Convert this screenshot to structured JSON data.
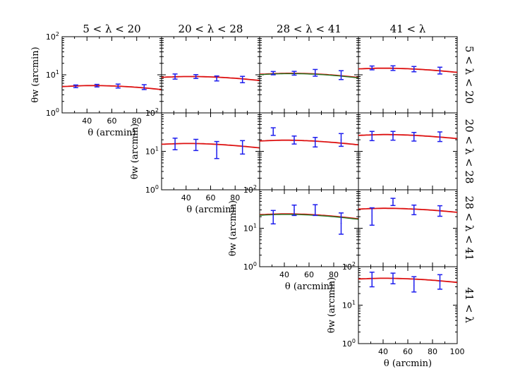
{
  "chart_data": {
    "type": "scatter",
    "title": "",
    "x_scale": "linear",
    "y_scale": "log",
    "xlim": [
      20,
      100
    ],
    "ylim_by_row": [
      [
        1,
        100
      ],
      [
        1,
        100
      ],
      [
        1,
        100
      ],
      [
        1,
        100
      ]
    ],
    "x_ticks": [
      40,
      60,
      80
    ],
    "x_ticks_last_column": [
      40,
      60,
      80,
      100
    ],
    "y_tick_labels": [
      "10^0",
      "10^1",
      "10^2"
    ],
    "xlabel": "θ (arcmin)",
    "ylabel": "θw (arcmin)",
    "column_titles": [
      "5 < λ < 20",
      "20 < λ < 28",
      "28 < λ < 41",
      "41 < λ"
    ],
    "row_titles": [
      "5 < λ < 20",
      "20 < λ < 28",
      "28 < λ < 41",
      "41 < λ"
    ],
    "series_styles": {
      "data": {
        "marker": "errorbar",
        "color": "#1e1eee"
      },
      "model": {
        "line": "solid",
        "color": "#dd1111"
      },
      "model_alt": {
        "line": "solid",
        "color": "#227722"
      }
    },
    "panels": [
      {
        "row": 0,
        "col": 0,
        "points": [
          {
            "x": 31,
            "y": 5.0,
            "lo": 4.6,
            "hi": 5.4
          },
          {
            "x": 48,
            "y": 5.2,
            "lo": 4.8,
            "hi": 5.6
          },
          {
            "x": 65,
            "y": 5.1,
            "lo": 4.5,
            "hi": 5.7
          },
          {
            "x": 86,
            "y": 4.8,
            "lo": 4.1,
            "hi": 5.5
          }
        ],
        "model": [
          {
            "x": 20,
            "y": 4.9
          },
          {
            "x": 40,
            "y": 5.2
          },
          {
            "x": 60,
            "y": 5.1
          },
          {
            "x": 80,
            "y": 4.7
          },
          {
            "x": 100,
            "y": 4.1
          }
        ]
      },
      {
        "row": 0,
        "col": 1,
        "points": [
          {
            "x": 31,
            "y": 9.0,
            "lo": 7.7,
            "hi": 10.5
          },
          {
            "x": 48,
            "y": 9.0,
            "lo": 8.0,
            "hi": 10.1
          },
          {
            "x": 65,
            "y": 8.0,
            "lo": 6.9,
            "hi": 9.3
          },
          {
            "x": 86,
            "y": 7.5,
            "lo": 6.2,
            "hi": 9.1
          }
        ],
        "model": [
          {
            "x": 20,
            "y": 8.6
          },
          {
            "x": 40,
            "y": 9.0
          },
          {
            "x": 60,
            "y": 8.8
          },
          {
            "x": 80,
            "y": 8.1
          },
          {
            "x": 100,
            "y": 7.1
          }
        ]
      },
      {
        "row": 0,
        "col": 2,
        "points": [
          {
            "x": 31,
            "y": 11.0,
            "lo": 10.0,
            "hi": 12.2
          },
          {
            "x": 48,
            "y": 11.0,
            "lo": 9.8,
            "hi": 12.3
          },
          {
            "x": 65,
            "y": 11.3,
            "lo": 9.2,
            "hi": 13.8
          },
          {
            "x": 86,
            "y": 9.5,
            "lo": 7.5,
            "hi": 12.8
          }
        ],
        "model": [
          {
            "x": 20,
            "y": 10.3
          },
          {
            "x": 40,
            "y": 10.9
          },
          {
            "x": 60,
            "y": 10.7
          },
          {
            "x": 80,
            "y": 9.8
          },
          {
            "x": 100,
            "y": 8.5
          }
        ],
        "model_alt": [
          {
            "x": 20,
            "y": 10.1
          },
          {
            "x": 40,
            "y": 10.7
          },
          {
            "x": 60,
            "y": 10.5
          },
          {
            "x": 80,
            "y": 9.6
          },
          {
            "x": 100,
            "y": 8.3
          }
        ]
      },
      {
        "row": 0,
        "col": 3,
        "points": [
          {
            "x": 31,
            "y": 15.0,
            "lo": 13.5,
            "hi": 17.0
          },
          {
            "x": 48,
            "y": 15.0,
            "lo": 13.0,
            "hi": 17.2
          },
          {
            "x": 65,
            "y": 14.0,
            "lo": 12.0,
            "hi": 16.5
          },
          {
            "x": 86,
            "y": 12.8,
            "lo": 10.5,
            "hi": 15.8
          }
        ],
        "model": [
          {
            "x": 20,
            "y": 14.3
          },
          {
            "x": 40,
            "y": 14.9
          },
          {
            "x": 60,
            "y": 14.4
          },
          {
            "x": 80,
            "y": 13.2
          },
          {
            "x": 100,
            "y": 11.6
          }
        ]
      },
      {
        "row": 1,
        "col": 1,
        "points": [
          {
            "x": 31,
            "y": 15.0,
            "lo": 11.0,
            "hi": 22.0
          },
          {
            "x": 48,
            "y": 14.5,
            "lo": 10.5,
            "hi": 20.5
          },
          {
            "x": 65,
            "y": 11.0,
            "lo": 6.5,
            "hi": 18.0
          },
          {
            "x": 86,
            "y": 12.5,
            "lo": 8.5,
            "hi": 19.0
          }
        ],
        "model": [
          {
            "x": 20,
            "y": 15.3
          },
          {
            "x": 40,
            "y": 16.0
          },
          {
            "x": 60,
            "y": 15.5
          },
          {
            "x": 80,
            "y": 14.1
          },
          {
            "x": 100,
            "y": 12.3
          }
        ]
      },
      {
        "row": 1,
        "col": 2,
        "points": [
          {
            "x": 31,
            "y": 33.0,
            "lo": 26.0,
            "hi": 41.0
          },
          {
            "x": 48,
            "y": 20.0,
            "lo": 15.5,
            "hi": 25.0
          },
          {
            "x": 65,
            "y": 17.5,
            "lo": 13.0,
            "hi": 23.0
          },
          {
            "x": 86,
            "y": 20.0,
            "lo": 13.5,
            "hi": 29.0
          }
        ],
        "model": [
          {
            "x": 20,
            "y": 18.6
          },
          {
            "x": 40,
            "y": 19.5
          },
          {
            "x": 60,
            "y": 18.8
          },
          {
            "x": 80,
            "y": 17.0
          },
          {
            "x": 100,
            "y": 14.8
          }
        ]
      },
      {
        "row": 1,
        "col": 3,
        "points": [
          {
            "x": 31,
            "y": 25.0,
            "lo": 19.0,
            "hi": 33.0
          },
          {
            "x": 48,
            "y": 25.5,
            "lo": 19.5,
            "hi": 33.0
          },
          {
            "x": 65,
            "y": 24.0,
            "lo": 18.5,
            "hi": 31.0
          },
          {
            "x": 86,
            "y": 24.0,
            "lo": 18.0,
            "hi": 32.0
          }
        ],
        "model": [
          {
            "x": 20,
            "y": 26.0
          },
          {
            "x": 40,
            "y": 27.3
          },
          {
            "x": 60,
            "y": 26.5
          },
          {
            "x": 80,
            "y": 24.3
          },
          {
            "x": 100,
            "y": 21.5
          }
        ]
      },
      {
        "row": 2,
        "col": 2,
        "points": [
          {
            "x": 31,
            "y": 20.0,
            "lo": 13.0,
            "hi": 29.0
          },
          {
            "x": 48,
            "y": 30.0,
            "lo": 21.5,
            "hi": 40.0
          },
          {
            "x": 65,
            "y": 30.5,
            "lo": 21.5,
            "hi": 41.0
          },
          {
            "x": 86,
            "y": 13.5,
            "lo": 7.0,
            "hi": 25.0
          }
        ],
        "model": [
          {
            "x": 20,
            "y": 22.5
          },
          {
            "x": 40,
            "y": 23.6
          },
          {
            "x": 60,
            "y": 22.8
          },
          {
            "x": 80,
            "y": 20.5
          },
          {
            "x": 100,
            "y": 17.6
          }
        ],
        "model_alt": [
          {
            "x": 20,
            "y": 21.8
          },
          {
            "x": 40,
            "y": 22.9
          },
          {
            "x": 60,
            "y": 22.1
          },
          {
            "x": 80,
            "y": 19.9
          },
          {
            "x": 100,
            "y": 17.1
          }
        ]
      },
      {
        "row": 2,
        "col": 3,
        "points": [
          {
            "x": 31,
            "y": 21.0,
            "lo": 12.0,
            "hi": 34.0
          },
          {
            "x": 48,
            "y": 48.0,
            "lo": 39.0,
            "hi": 60.0
          },
          {
            "x": 65,
            "y": 30.5,
            "lo": 22.5,
            "hi": 40.0
          },
          {
            "x": 86,
            "y": 28.5,
            "lo": 20.5,
            "hi": 38.5
          }
        ],
        "model": [
          {
            "x": 20,
            "y": 31.5
          },
          {
            "x": 40,
            "y": 33.0
          },
          {
            "x": 60,
            "y": 32.0
          },
          {
            "x": 80,
            "y": 29.5
          },
          {
            "x": 100,
            "y": 26.0
          }
        ]
      },
      {
        "row": 3,
        "col": 3,
        "points": [
          {
            "x": 31,
            "y": 46.0,
            "lo": 30.0,
            "hi": 72.0
          },
          {
            "x": 48,
            "y": 49.0,
            "lo": 36.0,
            "hi": 68.0
          },
          {
            "x": 65,
            "y": 33.0,
            "lo": 22.0,
            "hi": 55.0
          },
          {
            "x": 86,
            "y": 40.0,
            "lo": 26.0,
            "hi": 62.0
          }
        ],
        "model": [
          {
            "x": 20,
            "y": 48.0
          },
          {
            "x": 40,
            "y": 50.0
          },
          {
            "x": 60,
            "y": 48.5
          },
          {
            "x": 80,
            "y": 44.5
          },
          {
            "x": 100,
            "y": 39.0
          }
        ]
      }
    ]
  }
}
